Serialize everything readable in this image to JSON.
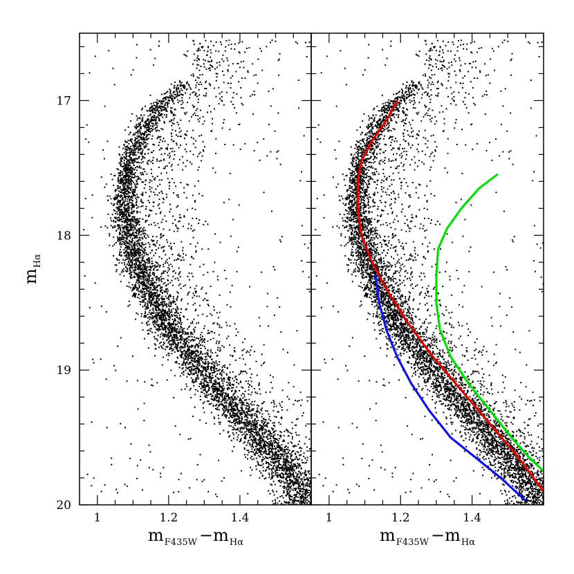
{
  "chart_data": [
    {
      "panel": "left",
      "type": "scatter",
      "description_kind": "color-magnitude diagram",
      "xlabel": {
        "main": "m",
        "sub1": "F435W",
        "dash": "−m",
        "sub2": "Hα"
      },
      "ylabel": {
        "main": "m",
        "sub": "Hα"
      },
      "xlim": [
        0.95,
        1.6
      ],
      "ylim": [
        20.0,
        16.5
      ],
      "xticks": [
        1,
        1.2,
        1.4
      ],
      "yticks": [
        17,
        18,
        19,
        20
      ],
      "sequence_ridge": {
        "x": [
          1.24,
          1.17,
          1.12,
          1.09,
          1.08,
          1.08,
          1.1,
          1.14,
          1.19,
          1.26,
          1.34,
          1.42,
          1.5,
          1.58
        ],
        "y": [
          16.9,
          17.05,
          17.25,
          17.45,
          17.65,
          17.9,
          18.15,
          18.4,
          18.65,
          18.9,
          19.15,
          19.4,
          19.65,
          19.9
        ]
      }
    },
    {
      "panel": "right",
      "type": "scatter",
      "description_kind": "color-magnitude diagram with isochrone fits",
      "xlabel": {
        "main": "m",
        "sub1": "F435W",
        "dash": "−m",
        "sub2": "Hα"
      },
      "xlim": [
        0.95,
        1.6
      ],
      "ylim": [
        20.0,
        16.5
      ],
      "xticks": [
        1,
        1.2,
        1.4
      ],
      "series": [
        {
          "name": "red sequence fit",
          "color": "#e00000",
          "x": [
            1.19,
            1.16,
            1.12,
            1.09,
            1.08,
            1.08,
            1.09,
            1.12,
            1.16,
            1.22,
            1.29,
            1.37,
            1.45,
            1.53,
            1.6
          ],
          "y": [
            17.0,
            17.15,
            17.3,
            17.45,
            17.6,
            17.8,
            18.0,
            18.2,
            18.4,
            18.65,
            18.9,
            19.15,
            19.4,
            19.65,
            19.9
          ]
        },
        {
          "name": "blue sequence fit",
          "color": "#1010f0",
          "x": [
            1.13,
            1.14,
            1.16,
            1.19,
            1.23,
            1.28,
            1.34,
            1.41,
            1.48,
            1.55
          ],
          "y": [
            18.3,
            18.5,
            18.7,
            18.9,
            19.1,
            19.3,
            19.5,
            19.65,
            19.8,
            19.97
          ]
        },
        {
          "name": "green sequence fit",
          "color": "#00e000",
          "x": [
            1.47,
            1.42,
            1.37,
            1.33,
            1.305,
            1.3,
            1.3,
            1.31,
            1.34,
            1.39,
            1.45,
            1.51,
            1.56,
            1.6
          ],
          "y": [
            17.55,
            17.65,
            17.8,
            17.95,
            18.1,
            18.3,
            18.5,
            18.7,
            18.9,
            19.1,
            19.3,
            19.5,
            19.65,
            19.75
          ]
        }
      ]
    }
  ]
}
